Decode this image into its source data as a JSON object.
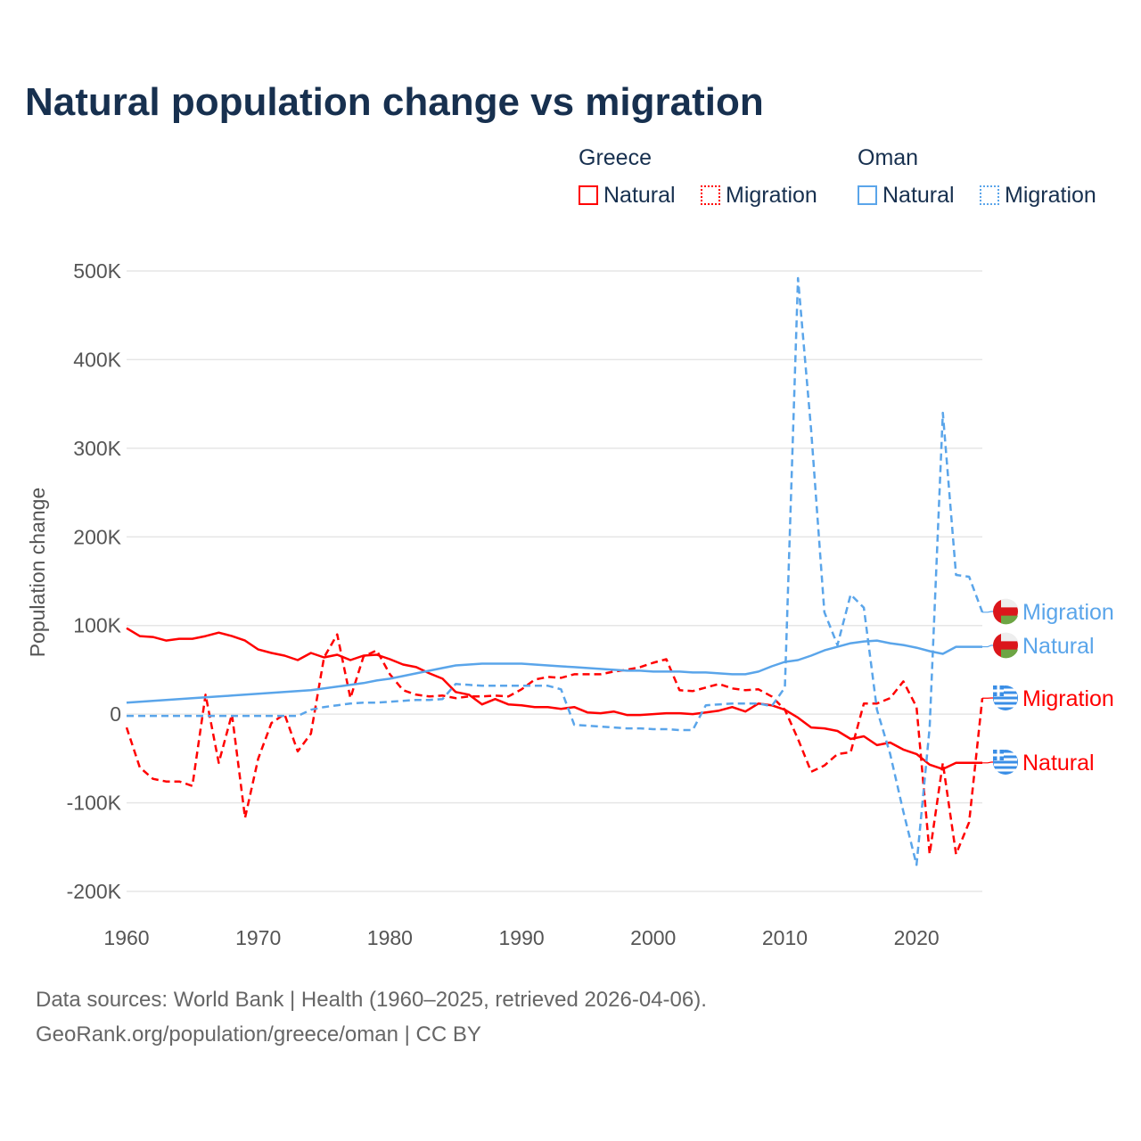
{
  "title": "Natural population change vs migration",
  "legend": {
    "groups": [
      {
        "name": "Greece",
        "items": [
          "Natural",
          "Migration"
        ]
      },
      {
        "name": "Oman",
        "items": [
          "Natural",
          "Migration"
        ]
      }
    ]
  },
  "colors": {
    "greece": "#ff0000",
    "oman": "#5aa5ea"
  },
  "footer": [
    "Data sources: World Bank | Health (1960–2025, retrieved 2026-04-06).",
    "GeoRank.org/population/greece/oman | CC BY"
  ],
  "chart_data": {
    "type": "line",
    "title": "Natural population change vs migration",
    "xlabel": "",
    "ylabel": "Population change",
    "xlim": [
      1960,
      2025
    ],
    "ylim": [
      -200000,
      500000
    ],
    "xticks": [
      1960,
      1970,
      1980,
      1990,
      2000,
      2010,
      2020
    ],
    "yticks": [
      {
        "v": 500000,
        "l": "500K"
      },
      {
        "v": 400000,
        "l": "400K"
      },
      {
        "v": 300000,
        "l": "300K"
      },
      {
        "v": 200000,
        "l": "200K"
      },
      {
        "v": 100000,
        "l": "100K"
      },
      {
        "v": 0,
        "l": "0"
      },
      {
        "v": -100000,
        "l": "-100K"
      },
      {
        "v": -200000,
        "l": "-200K"
      }
    ],
    "x_start": 1960,
    "series": [
      {
        "name": "Greece Natural",
        "label": "Natural",
        "country": "greece",
        "dashed": false,
        "values_k": [
          97,
          88,
          87,
          83,
          85,
          85,
          88,
          92,
          88,
          83,
          73,
          69,
          66,
          61,
          69,
          64,
          67,
          61,
          66,
          67,
          62,
          56,
          53,
          46,
          40,
          25,
          22,
          11,
          17,
          11,
          10,
          8,
          8,
          6,
          8,
          2,
          1,
          3,
          -1,
          -1,
          0,
          1,
          1,
          0,
          2,
          4,
          8,
          3,
          12,
          10,
          5,
          -4,
          -15,
          -16,
          -19,
          -28,
          -25,
          -35,
          -32,
          -40,
          -45,
          -57,
          -62,
          -55,
          -55,
          -55
        ]
      },
      {
        "name": "Greece Migration",
        "label": "Migration",
        "country": "greece",
        "dashed": true,
        "values_k": [
          -15,
          -60,
          -73,
          -76,
          -76,
          -81,
          22,
          -55,
          0,
          -117,
          -50,
          -10,
          0,
          -42,
          -22,
          64,
          90,
          18,
          65,
          72,
          45,
          27,
          22,
          20,
          21,
          18,
          20,
          20,
          21,
          20,
          28,
          39,
          42,
          41,
          45,
          45,
          45,
          48,
          50,
          53,
          58,
          62,
          27,
          26,
          30,
          34,
          29,
          27,
          28,
          20,
          5,
          -28,
          -65,
          -58,
          -45,
          -43,
          12,
          12,
          18,
          37,
          8,
          -158,
          -55,
          -158,
          -122,
          18
        ]
      },
      {
        "name": "Oman Natural",
        "label": "Natural",
        "country": "oman",
        "dashed": false,
        "values_k": [
          13,
          14,
          15,
          16,
          17,
          18,
          19,
          20,
          21,
          22,
          23,
          24,
          25,
          26,
          27,
          29,
          31,
          33,
          35,
          38,
          40,
          43,
          46,
          49,
          52,
          55,
          56,
          57,
          57,
          57,
          57,
          56,
          55,
          54,
          53,
          52,
          51,
          50,
          49,
          49,
          48,
          48,
          48,
          47,
          47,
          46,
          45,
          45,
          48,
          54,
          59,
          61,
          66,
          72,
          76,
          80,
          82,
          83,
          80,
          78,
          75,
          71,
          68,
          76,
          76,
          76
        ]
      },
      {
        "name": "Oman Migration",
        "label": "Migration",
        "country": "oman",
        "dashed": true,
        "values_k": [
          -2,
          -2,
          -2,
          -2,
          -2,
          -2,
          -2,
          -2,
          -2,
          -2,
          -2,
          -2,
          -2,
          -2,
          5,
          8,
          10,
          12,
          13,
          13,
          14,
          15,
          16,
          16,
          17,
          34,
          33,
          32,
          32,
          32,
          32,
          32,
          32,
          28,
          -12,
          -13,
          -14,
          -15,
          -16,
          -16,
          -17,
          -17,
          -18,
          -18,
          10,
          11,
          12,
          12,
          12,
          9,
          30,
          492,
          320,
          115,
          78,
          135,
          120,
          5,
          -45,
          -110,
          -170,
          -15,
          340,
          157,
          155,
          115
        ]
      }
    ]
  }
}
